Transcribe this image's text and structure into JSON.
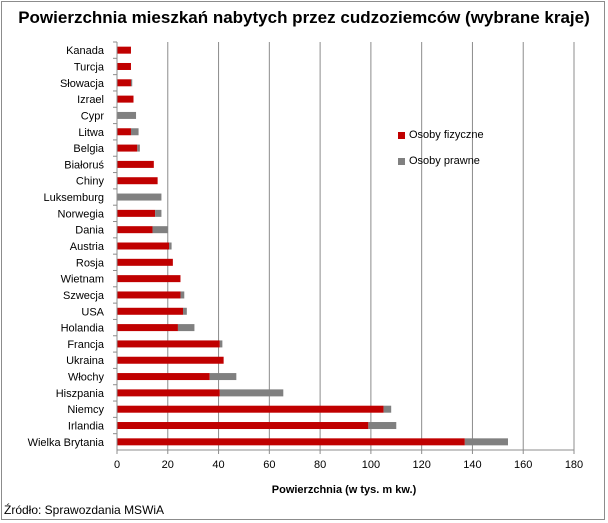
{
  "chart_data": {
    "type": "bar",
    "orientation": "horizontal",
    "stacked": true,
    "title": "Powierzchnia mieszkań nabytych przez cudzoziemców (wybrane kraje)",
    "xlabel": "Powierzchnia (w tys. m kw.)",
    "ylabel": "",
    "xlim": [
      0,
      180
    ],
    "xticks": [
      0,
      20,
      40,
      60,
      80,
      100,
      120,
      140,
      160,
      180
    ],
    "grid": true,
    "legend_position": "right",
    "categories": [
      "Kanada",
      "Turcja",
      "Słowacja",
      "Izrael",
      "Cypr",
      "Litwa",
      "Belgia",
      "Białoruś",
      "Chiny",
      "Luksemburg",
      "Norwegia",
      "Dania",
      "Austria",
      "Rosja",
      "Wietnam",
      "Szwecja",
      "USA",
      "Holandia",
      "Francja",
      "Ukraina",
      "Włochy",
      "Hiszpania",
      "Niemcy",
      "Irlandia",
      "Wielka Brytania"
    ],
    "series": [
      {
        "name": "Osoby fizyczne",
        "color": "#c00000",
        "values": [
          5.5,
          5.5,
          5.5,
          6.5,
          0,
          5.5,
          8,
          14.5,
          16,
          0,
          15,
          14,
          20.5,
          22,
          25,
          25,
          26,
          24,
          40.5,
          42,
          36.5,
          40.5,
          105,
          99,
          137
        ]
      },
      {
        "name": "Osoby prawne",
        "color": "#808080",
        "values": [
          0,
          0,
          0.5,
          0,
          7.5,
          3,
          1,
          0,
          0,
          17.5,
          2.5,
          6,
          1,
          0,
          0,
          1.5,
          1.5,
          6.5,
          1,
          0,
          10.5,
          25,
          3,
          11,
          17
        ]
      }
    ]
  },
  "source_text": "Źródło: Sprawozdania MSWiA"
}
